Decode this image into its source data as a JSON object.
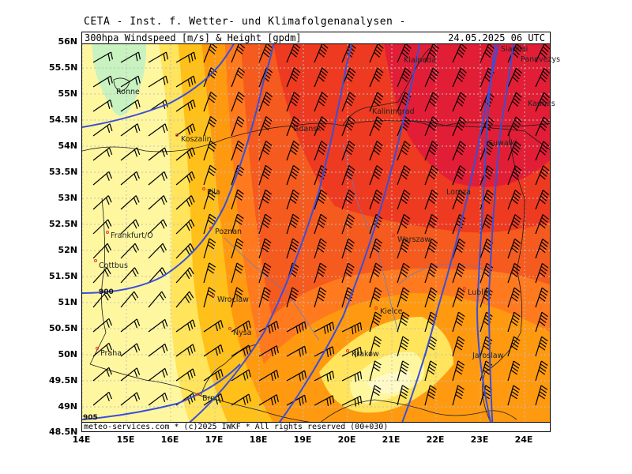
{
  "header": {
    "text": "CETA - Inst. f. Wetter- und Klimafolgenanalysen -"
  },
  "title": {
    "left": "300hpa Windspeed [m/s] & Height [gpdm]",
    "right": "24.05.2025 06 UTC"
  },
  "copyright": "meteo-services.com * (c)2025 IWKF * All rights reserved (00+030)",
  "axes": {
    "lat_labels": [
      "56N",
      "55.5N",
      "55N",
      "54.5N",
      "54N",
      "53.5N",
      "53N",
      "52.5N",
      "52N",
      "51.5N",
      "51N",
      "50.5N",
      "50N",
      "49.5N",
      "49N",
      "48.5N"
    ],
    "lon_labels": [
      "14E",
      "15E",
      "16E",
      "17E",
      "18E",
      "19E",
      "20E",
      "21E",
      "22E",
      "23E",
      "24E"
    ]
  },
  "cities": [
    {
      "name": "Siauliai",
      "dot": false
    },
    {
      "name": "Panevezys",
      "dot": false
    },
    {
      "name": "Klaipeda",
      "dot": false
    },
    {
      "name": "Kaunas",
      "dot": false
    },
    {
      "name": "Ronne",
      "dot": false
    },
    {
      "name": "Kaliningrad",
      "dot": false
    },
    {
      "name": "Gdansk",
      "dot": false
    },
    {
      "name": "Koszalin",
      "dot": true
    },
    {
      "name": "Suwalki",
      "dot": false
    },
    {
      "name": "Pila",
      "dot": true
    },
    {
      "name": "Lomza",
      "dot": false
    },
    {
      "name": "Poznan",
      "dot": true
    },
    {
      "name": "Frankfurt/O",
      "dot": true
    },
    {
      "name": "Warszaw",
      "dot": true
    },
    {
      "name": "Cottbus",
      "dot": true
    },
    {
      "name": "Wroclaw",
      "dot": true
    },
    {
      "name": "Lublin",
      "dot": true
    },
    {
      "name": "Kielce",
      "dot": true
    },
    {
      "name": "Nysa",
      "dot": true
    },
    {
      "name": "Praha",
      "dot": true
    },
    {
      "name": "Krakow",
      "dot": true
    },
    {
      "name": "Jaroslaw",
      "dot": false
    },
    {
      "name": "Brno",
      "dot": true
    }
  ],
  "contour_labels": [
    "900",
    "905"
  ],
  "colors": {
    "c1": "#c8f2c0",
    "c2": "#fff7a0",
    "c3": "#ffe45c",
    "c4": "#ffc01a",
    "c5": "#ff9a10",
    "c6": "#ff7a1e",
    "c7": "#f55a1e",
    "c8": "#ee3a20",
    "c9": "#e21e36",
    "contour": "#3a4fd8",
    "grid": "#bfbfbf",
    "border": "#1a1a1a"
  }
}
